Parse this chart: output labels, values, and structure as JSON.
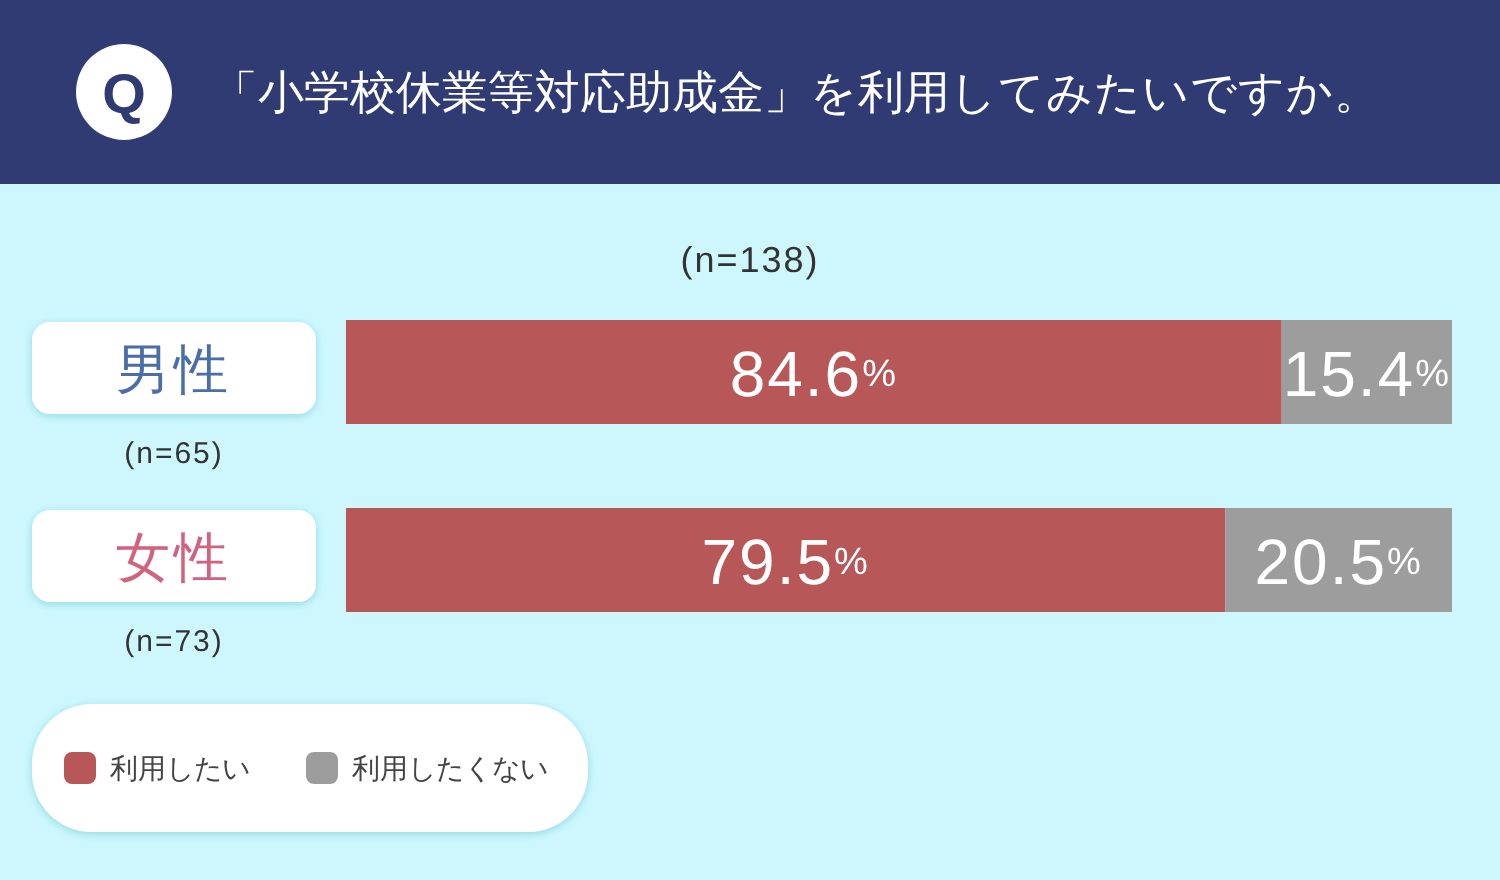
{
  "chart_data": {
    "type": "bar",
    "orientation": "horizontal",
    "stacked": true,
    "title": "「小学校休業等対応助成金」を利用してみたいですか。",
    "subtitle": "(n=138)",
    "categories": [
      "男性",
      "女性"
    ],
    "series": [
      {
        "name": "利用したい",
        "color": "#b75757",
        "values": [
          84.6,
          79.5
        ],
        "value_labels": [
          "84.6%",
          "79.5%"
        ]
      },
      {
        "name": "利用したくない",
        "color": "#9c9d9c",
        "values": [
          15.4,
          20.5
        ],
        "value_labels": [
          "15.4%",
          "20.5%"
        ]
      }
    ],
    "xlim": [
      0,
      100
    ],
    "tick_labels": "y",
    "legend": "bottom left",
    "annotations": [
      "Q",
      "(n=65)",
      "(n=73)"
    ]
  }
}
